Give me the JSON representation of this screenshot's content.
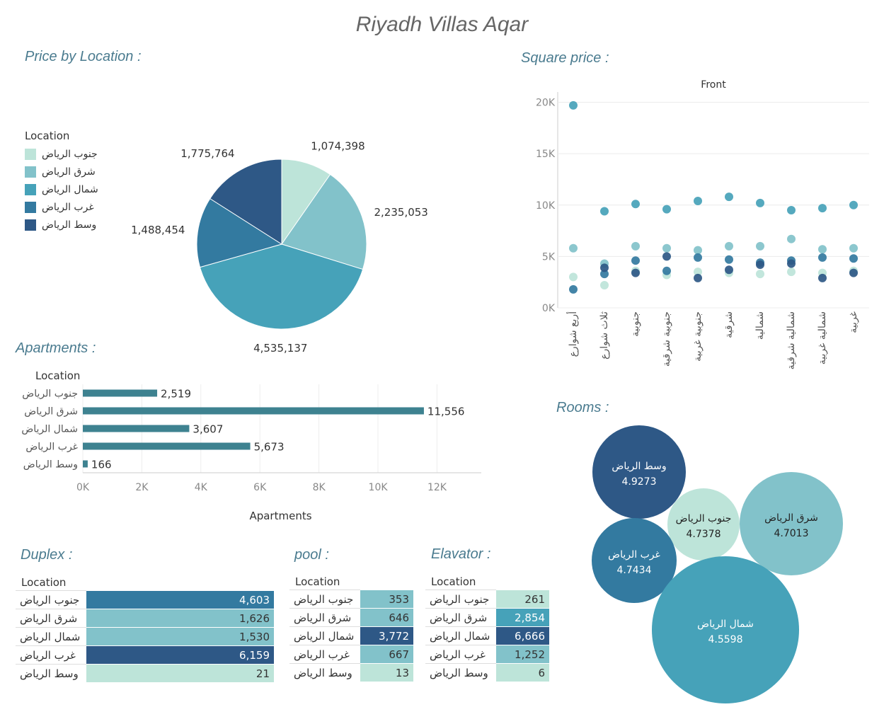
{
  "title": "Riyadh Villas Aqar",
  "sections": {
    "price_by_location": "Price by Location :",
    "square_price": "Square price :",
    "apartments": "Apartments :",
    "rooms": "Rooms :",
    "duplex": "Duplex :",
    "pool": "pool :",
    "elevator": "Elavator :"
  },
  "colors": {
    "c1": "#bde4d9",
    "c2": "#82c2ca",
    "c3": "#46a2b9",
    "c4": "#337aa0",
    "c5": "#2e5886",
    "bar": "#3e8290"
  },
  "legend": {
    "title": "Location",
    "items": [
      "جنوب الرياض",
      "شرق الرياض",
      "شمال الرياض",
      "غرب الرياض",
      "وسط الرياض"
    ]
  },
  "chart_data": [
    {
      "type": "pie",
      "name": "Price by Location",
      "categories": [
        "جنوب الرياض",
        "شرق الرياض",
        "شمال الرياض",
        "غرب الرياض",
        "وسط الرياض"
      ],
      "values": [
        1074398,
        2235053,
        4535137,
        1488454,
        1775764
      ],
      "labels": [
        "1,074,398",
        "2,235,053",
        "4,535,137",
        "1,488,454",
        "1,775,764"
      ]
    },
    {
      "type": "scatter",
      "name": "Square price",
      "header": "Front",
      "categories": [
        "أربع شوارع",
        "ثلاث شوارع",
        "جنوبية",
        "جنوبية شرقية",
        "جنوبية غربية",
        "شرقية",
        "شمالية",
        "شمالية شرقية",
        "شمالية غربية",
        "غربية"
      ],
      "ylim": [
        0,
        21000
      ],
      "yticks": [
        0,
        5000,
        10000,
        15000,
        20000
      ],
      "ytick_labels": [
        "0K",
        "5K",
        "10K",
        "15K",
        "20K"
      ],
      "series": [
        {
          "name": "جنوب الرياض",
          "values": [
            3000,
            2200,
            3600,
            3200,
            3500,
            3400,
            3300,
            3500,
            3400,
            3600
          ]
        },
        {
          "name": "شرق الرياض",
          "values": [
            5800,
            4300,
            6000,
            5800,
            5600,
            6000,
            6000,
            6700,
            5700,
            5800
          ]
        },
        {
          "name": "شمال الرياض",
          "values": [
            19700,
            9400,
            10100,
            9600,
            10400,
            10800,
            10200,
            9500,
            9700,
            10000
          ]
        },
        {
          "name": "غرب الرياض",
          "values": [
            1800,
            3300,
            4600,
            3600,
            4900,
            4700,
            4400,
            4600,
            4900,
            4800
          ]
        },
        {
          "name": "وسط الرياض",
          "values": [
            null,
            3900,
            3400,
            5000,
            2900,
            3700,
            4200,
            4300,
            2900,
            3400
          ]
        }
      ]
    },
    {
      "type": "bar",
      "name": "Apartments",
      "orientation": "horizontal",
      "legend_title": "Location",
      "categories": [
        "جنوب الرياض",
        "شرق الرياض",
        "شمال الرياض",
        "غرب الرياض",
        "وسط الرياض"
      ],
      "values": [
        2519,
        11556,
        3607,
        5673,
        166
      ],
      "labels": [
        "2,519",
        "11,556",
        "3,607",
        "5,673",
        "166"
      ],
      "xlabel": "Apartments",
      "xlim": [
        0,
        13500
      ],
      "xticks": [
        0,
        2000,
        4000,
        6000,
        8000,
        10000,
        12000
      ],
      "xtick_labels": [
        "0K",
        "2K",
        "4K",
        "6K",
        "8K",
        "10K",
        "12K"
      ]
    },
    {
      "type": "bubble",
      "name": "Rooms",
      "categories": [
        "وسط الرياض",
        "جنوب الرياض",
        "شرق الرياض",
        "غرب الرياض",
        "شمال الرياض"
      ],
      "values": [
        4.9273,
        4.7378,
        4.7013,
        4.7434,
        4.5598
      ],
      "labels": [
        "4.9273",
        "4.7378",
        "4.7013",
        "4.7434",
        "4.5598"
      ]
    },
    {
      "type": "table",
      "name": "Duplex",
      "header": "Location",
      "categories": [
        "جنوب الرياض",
        "شرق الرياض",
        "شمال الرياض",
        "غرب الرياض",
        "وسط الرياض"
      ],
      "values": [
        4603,
        1626,
        1530,
        6159,
        21
      ],
      "labels": [
        "4,603",
        "1,626",
        "1,530",
        "6,159",
        "21"
      ]
    },
    {
      "type": "table",
      "name": "pool",
      "header": "Location",
      "categories": [
        "جنوب الرياض",
        "شرق الرياض",
        "شمال الرياض",
        "غرب الرياض",
        "وسط الرياض"
      ],
      "values": [
        353,
        646,
        3772,
        667,
        13
      ],
      "labels": [
        "353",
        "646",
        "3,772",
        "667",
        "13"
      ]
    },
    {
      "type": "table",
      "name": "Elavator",
      "header": "Location",
      "categories": [
        "جنوب الرياض",
        "شرق الرياض",
        "شمال الرياض",
        "غرب الرياض",
        "وسط الرياض"
      ],
      "values": [
        261,
        2854,
        6666,
        1252,
        6
      ],
      "labels": [
        "261",
        "2,854",
        "6,666",
        "1,252",
        "6"
      ]
    }
  ]
}
